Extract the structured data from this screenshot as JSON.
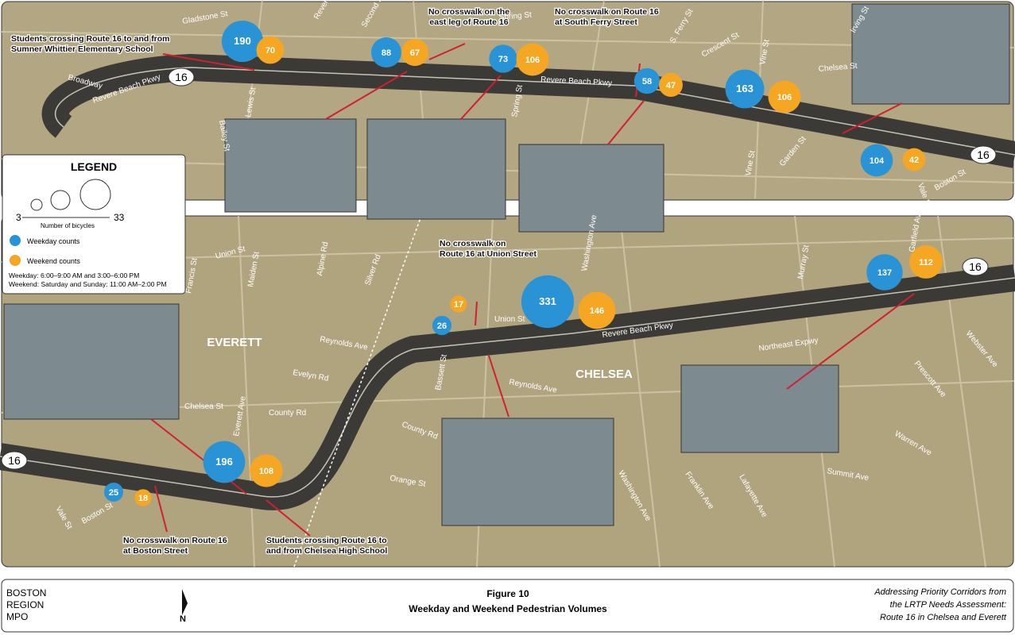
{
  "map": {
    "counts": [
      {
        "weekday": 190,
        "weekend": 70
      },
      {
        "weekday": 88,
        "weekend": 67
      },
      {
        "weekday": 73,
        "weekend": 106
      },
      {
        "weekday": 58,
        "weekend": 47
      },
      {
        "weekday": 163,
        "weekend": 106
      },
      {
        "weekday": 104,
        "weekend": 42
      },
      {
        "weekday": 26,
        "weekend": 17
      },
      {
        "weekday": 331,
        "weekend": 146
      },
      {
        "weekday": 137,
        "weekend": 112
      },
      {
        "weekday": 196,
        "weekend": 108
      },
      {
        "weekday": 25,
        "weekend": 18
      }
    ],
    "weekday_color": "#2a93d5",
    "weekend_color": "#f5a623",
    "route_shields": [
      "16",
      "16",
      "16",
      "16"
    ],
    "places": [
      "EVERETT",
      "CHELSEA"
    ],
    "streets": [
      "Gladstone St",
      "Revere St",
      "Second St",
      "Spring St",
      "S. Ferry St",
      "Crescent St",
      "Vine St",
      "Chelsea St",
      "Irving St",
      "Broadway",
      "Revere Beach Pkwy",
      "Revere Beach Pkwy",
      "Lewis St",
      "Bailey St",
      "Spring St",
      "Vine St",
      "Garden St",
      "Vale St",
      "Boston St",
      "Union St",
      "Alpine Rd",
      "Silver Rd",
      "Francis St",
      "Union St",
      "Washington Ave",
      "Murray St",
      "Garfield Ave",
      "Reynolds Ave",
      "Revere Beach Pkwy",
      "Northeast Expwy",
      "Evelyn Rd",
      "Reynolds Ave",
      "Bassett St",
      "Chelsea St",
      "County Rd",
      "County Rd",
      "Everett Ave",
      "Maiden St",
      "Orange St",
      "Vale St",
      "Boston St",
      "Washington Ave",
      "Franklin Ave",
      "Lafayette Ave",
      "Summit Ave",
      "Warren Ave",
      "Prescott Ave",
      "Webster Ave"
    ],
    "annotations": [
      [
        "Students crossing Route 16 to and from",
        "Sumner Whittier Elementary School"
      ],
      [
        "No crosswalk on the",
        "east leg of Route 16"
      ],
      [
        "No crosswalk on Route 16",
        "at South Ferry Street"
      ],
      [
        "No crosswalk on",
        "Route 16 at Union Street"
      ],
      [
        "No crosswalk on Route 16",
        "at Boston Street"
      ],
      [
        "Students crossing Route 16 to",
        "and from Chelsea High School"
      ]
    ]
  },
  "legend": {
    "title": "LEGEND",
    "size_min": "3",
    "size_max": "33",
    "size_label": "Number of bicycles",
    "weekday": "Weekday counts",
    "weekend": "Weekend counts",
    "notes": [
      "Weekday: 6:00–9:00 AM and 3:00–6:00 PM",
      "Weekend: Saturday and Sunday: 11:00 AM–2:00 PM"
    ]
  },
  "footer": {
    "org": [
      "BOSTON",
      "REGION",
      "MPO"
    ],
    "north": "N",
    "figure": "Figure 10",
    "title": "Weekday and Weekend Pedestrian Volumes",
    "subtitle": [
      "Addressing Priority Corridors from",
      "the LRTP Needs Assessment:",
      "Route 16 in Chelsea and Everett"
    ]
  }
}
